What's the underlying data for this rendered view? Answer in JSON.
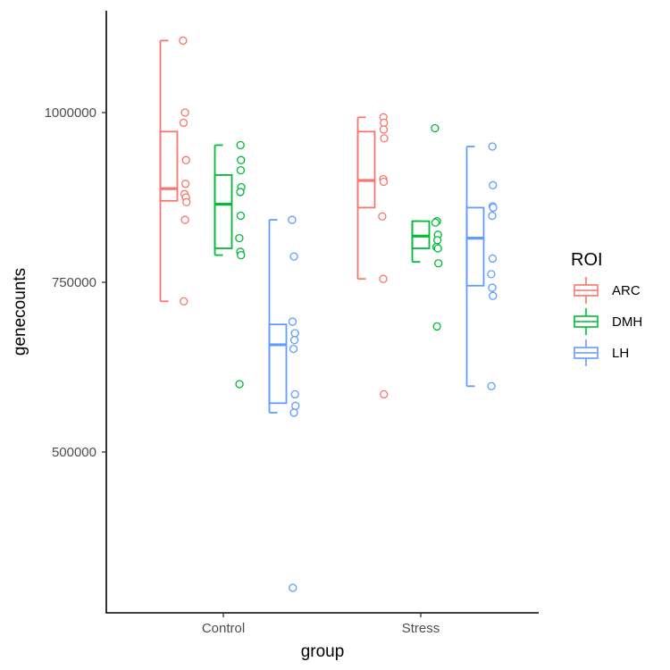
{
  "chart_data": {
    "type": "box",
    "xlabel": "group",
    "ylabel": "genecounts",
    "categories": [
      "Control",
      "Stress"
    ],
    "yticks": [
      500000,
      750000,
      1000000
    ],
    "ytick_labels": [
      "500000",
      "750000",
      "1000000"
    ],
    "ylim": [
      280000,
      1150000
    ],
    "legend": {
      "title": "ROI",
      "position": "right"
    },
    "series": [
      {
        "name": "ARC",
        "color": "#F8766D",
        "groups": [
          {
            "group": "Control",
            "box": {
              "whisker_low": 722000,
              "q1": 870000,
              "median": 888000,
              "q3": 972000,
              "whisker_high": 1106000
            },
            "points": [
              1106000,
              1000000,
              985000,
              930000,
              895000,
              880000,
              875000,
              868000,
              842000,
              722000
            ]
          },
          {
            "group": "Stress",
            "box": {
              "whisker_low": 755000,
              "q1": 860000,
              "median": 900000,
              "q3": 972000,
              "whisker_high": 993000
            },
            "points": [
              993000,
              985000,
              975000,
              962000,
              902000,
              898000,
              847000,
              755000,
              585000
            ]
          }
        ]
      },
      {
        "name": "DMH",
        "color": "#00BA38",
        "groups": [
          {
            "group": "Control",
            "box": {
              "whisker_low": 790000,
              "q1": 800000,
              "median": 865000,
              "q3": 908000,
              "whisker_high": 952000
            },
            "points": [
              952000,
              930000,
              915000,
              890000,
              883000,
              848000,
              815000,
              795000,
              790000,
              600000
            ]
          },
          {
            "group": "Stress",
            "box": {
              "whisker_low": 780000,
              "q1": 800000,
              "median": 818000,
              "q3": 840000,
              "whisker_high": 840000
            },
            "points": [
              977000,
              840000,
              838000,
              820000,
              812000,
              802000,
              800000,
              778000,
              685000
            ]
          }
        ]
      },
      {
        "name": "LH",
        "color": "#619CFF",
        "groups": [
          {
            "group": "Control",
            "box": {
              "whisker_low": 558000,
              "q1": 572000,
              "median": 658000,
              "q3": 688000,
              "whisker_high": 842000
            },
            "points": [
              842000,
              788000,
              692000,
              675000,
              665000,
              652000,
              585000,
              568000,
              558000,
              300000
            ]
          },
          {
            "group": "Stress",
            "box": {
              "whisker_low": 597000,
              "q1": 745000,
              "median": 815000,
              "q3": 860000,
              "whisker_high": 950000
            },
            "points": [
              950000,
              893000,
              862000,
              860000,
              848000,
              785000,
              762000,
              742000,
              730000,
              597000
            ]
          }
        ]
      }
    ]
  }
}
